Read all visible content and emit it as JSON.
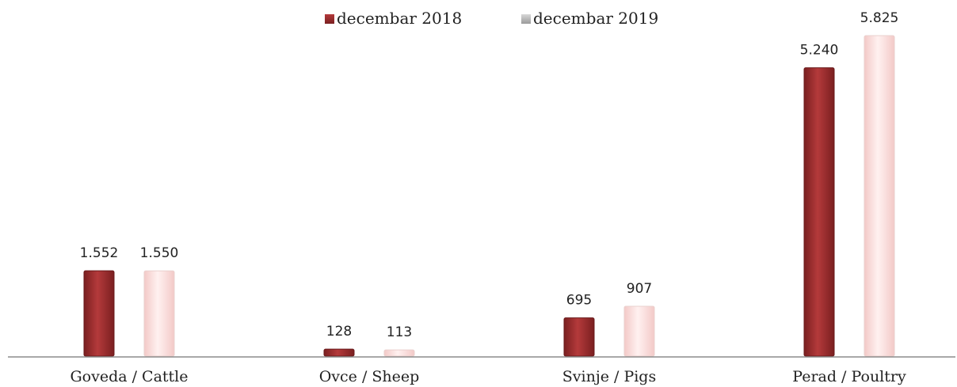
{
  "chart_data": {
    "type": "bar",
    "categories": [
      "Goveda / Cattle",
      "Ovce / Sheep",
      "Svinje / Pigs",
      "Perad / Poultry"
    ],
    "series": [
      {
        "name": "decembar 2018",
        "values": [
          1552,
          128,
          695,
          5240
        ],
        "value_labels": [
          "1.552",
          "128",
          "695",
          "5.240"
        ],
        "color": "#9e2a2b"
      },
      {
        "name": "decembar 2019",
        "values": [
          1550,
          113,
          907,
          5825
        ],
        "value_labels": [
          "1.550",
          "113",
          "907",
          "5.825"
        ],
        "color": "#f9dad8"
      }
    ],
    "ylim": [
      0,
      6000
    ],
    "grid": false,
    "legend_position": "top-center",
    "title": "",
    "xlabel": "",
    "ylabel": ""
  }
}
